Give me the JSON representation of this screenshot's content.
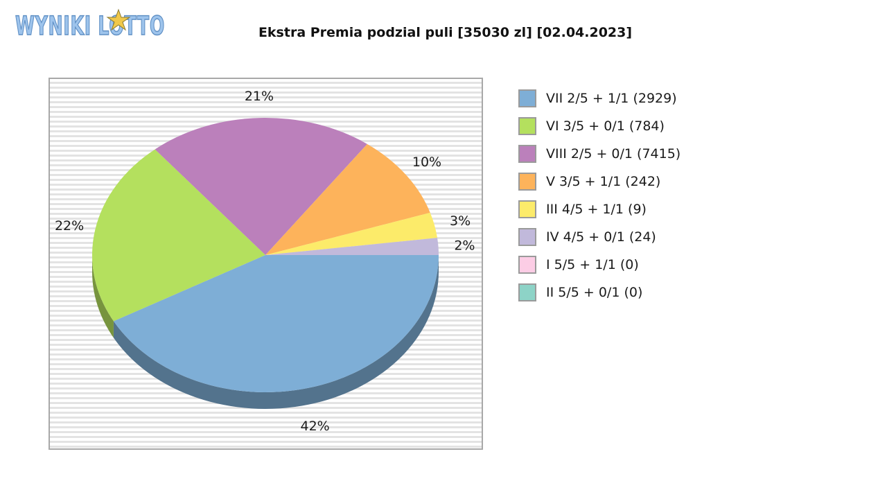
{
  "logo": {
    "text": "WYNIKI LOTTO",
    "colors": {
      "fill": "#9ec4ec",
      "stroke": "#5f8fc4",
      "star": "#f0c84a"
    }
  },
  "chart_data": {
    "type": "pie",
    "style": "3d",
    "title": "Ekstra Premia podzial puli [35030 zl] [02.04.2023]",
    "legend_position": "right",
    "grid": false,
    "slices": [
      {
        "label": "VII 2/5 + 1/1 (2929)",
        "percent": 42,
        "percent_label": "42%",
        "color": "#7eaed6"
      },
      {
        "label": "VI 3/5 + 0/1 (784)",
        "percent": 22,
        "percent_label": "22%",
        "color": "#b4e05e"
      },
      {
        "label": "VIII 2/5 + 0/1 (7415)",
        "percent": 21,
        "percent_label": "21%",
        "color": "#bb80bb"
      },
      {
        "label": "V 3/5 + 1/1 (242)",
        "percent": 10,
        "percent_label": "10%",
        "color": "#fdb35b"
      },
      {
        "label": "III 4/5 + 1/1 (9)",
        "percent": 3,
        "percent_label": "3%",
        "color": "#fceb6a"
      },
      {
        "label": "IV 4/5 + 0/1 (24)",
        "percent": 2,
        "percent_label": "2%",
        "color": "#c1b9db"
      },
      {
        "label": "I 5/5 + 1/1 (0)",
        "percent": 0,
        "percent_label": "",
        "color": "#fccde5"
      },
      {
        "label": "II 5/5 + 0/1 (0)",
        "percent": 0,
        "percent_label": "",
        "color": "#8dd3c7"
      }
    ]
  }
}
